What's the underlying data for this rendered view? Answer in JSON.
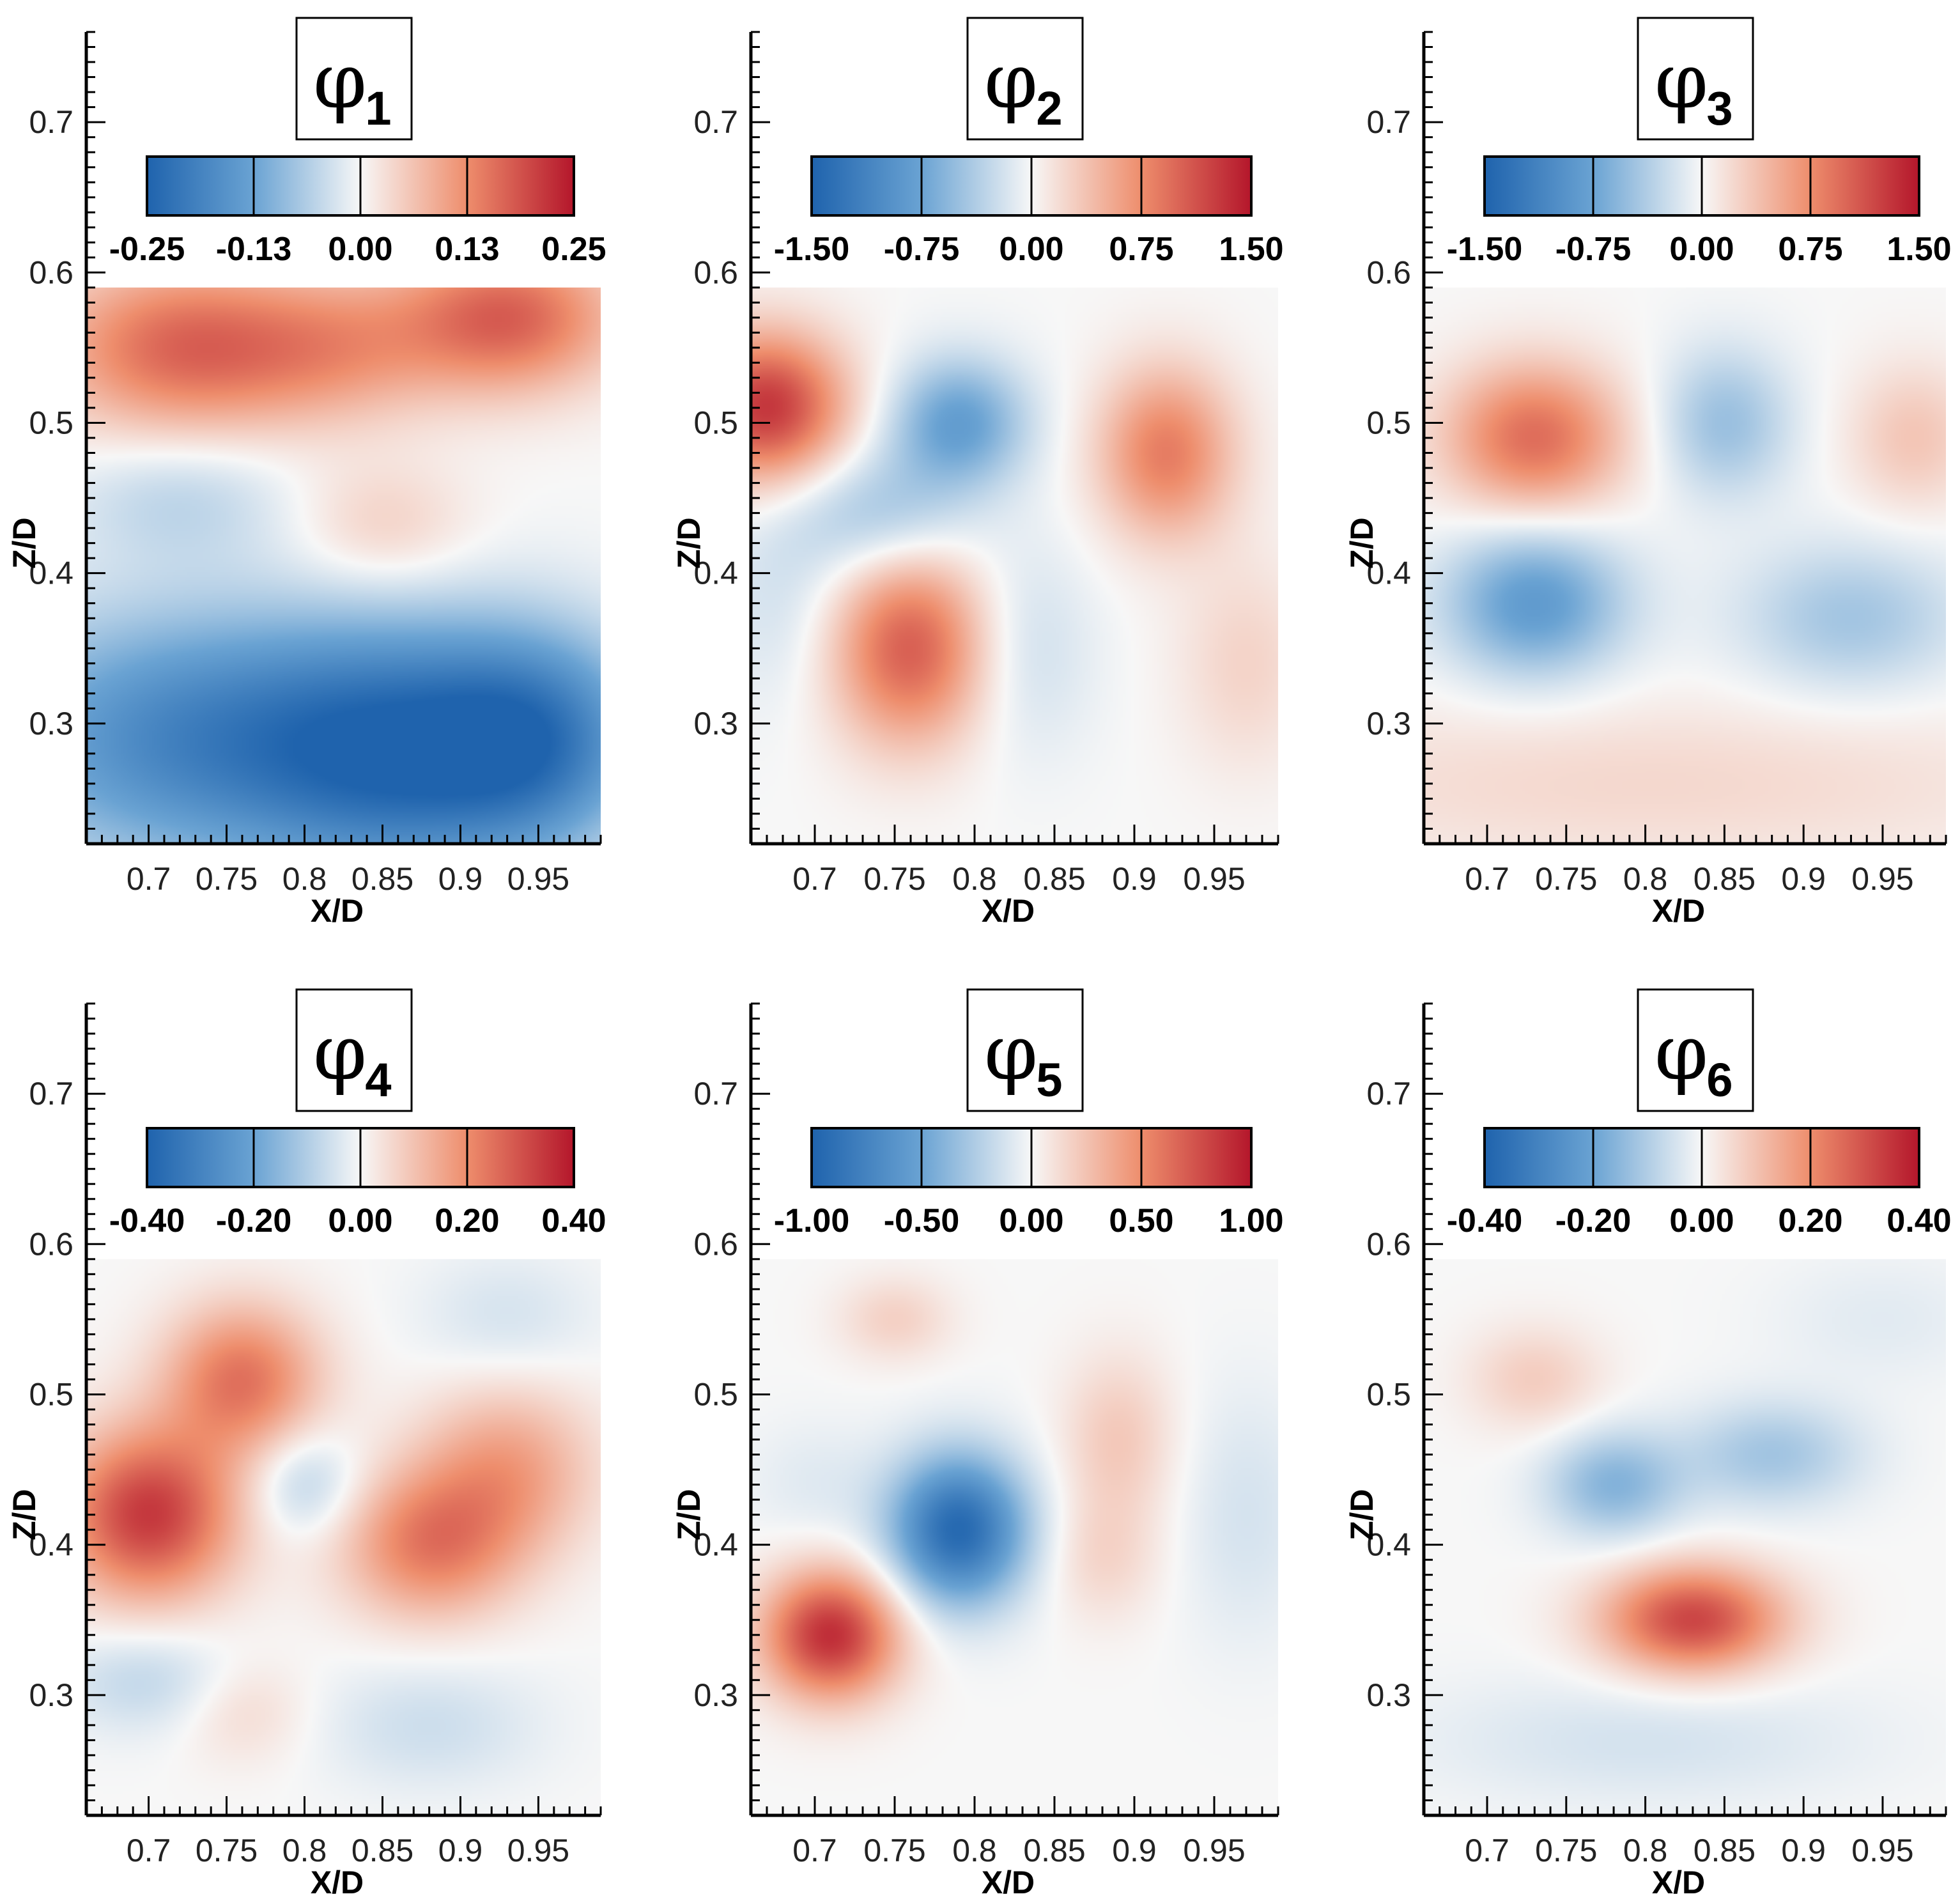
{
  "palette": {
    "neg_strong": "#1f63ad",
    "neg_mid": "#6aa3d3",
    "neutral": "#f7f7f7",
    "pos_mid": "#ee8d6c",
    "pos_strong": "#b4162b"
  },
  "chart_data": [
    {
      "type": "heatmap",
      "title_symbol": "φ",
      "title_index": "1",
      "xlabel": "X/D",
      "ylabel": "Z/D",
      "xlim": [
        0.66,
        0.99
      ],
      "ylim": [
        0.22,
        0.76
      ],
      "field_x_range": [
        0.66,
        0.99
      ],
      "field_y_range": [
        0.22,
        0.59
      ],
      "xticks": [
        "0.7",
        "0.75",
        "0.8",
        "0.85",
        "0.9",
        "0.95"
      ],
      "xtick_values": [
        0.7,
        0.75,
        0.8,
        0.85,
        0.9,
        0.95
      ],
      "yticks": [
        "0.3",
        "0.4",
        "0.5",
        "0.6",
        "0.7"
      ],
      "ytick_values": [
        0.3,
        0.4,
        0.5,
        0.6,
        0.7
      ],
      "colorbar_labels": [
        "-0.25",
        "-0.13",
        "0.00",
        "0.13",
        "0.25"
      ],
      "colorbar_range": [
        -0.25,
        0.25
      ],
      "ylabel_visible": true,
      "features": [
        {
          "x": 0.72,
          "z": 0.55,
          "amplitude": 0.16,
          "sx": 0.06,
          "sz": 0.04
        },
        {
          "x": 0.93,
          "z": 0.57,
          "amplitude": 0.17,
          "sx": 0.05,
          "sz": 0.035
        },
        {
          "x": 0.82,
          "z": 0.55,
          "amplitude": 0.09,
          "sx": 0.05,
          "sz": 0.035
        },
        {
          "x": 0.72,
          "z": 0.45,
          "amplitude": -0.05,
          "sx": 0.05,
          "sz": 0.03
        },
        {
          "x": 0.85,
          "z": 0.43,
          "amplitude": 0.05,
          "sx": 0.04,
          "sz": 0.03
        },
        {
          "x": 0.72,
          "z": 0.29,
          "amplitude": -0.17,
          "sx": 0.09,
          "sz": 0.06
        },
        {
          "x": 0.86,
          "z": 0.28,
          "amplitude": -0.2,
          "sx": 0.07,
          "sz": 0.06
        },
        {
          "x": 0.95,
          "z": 0.29,
          "amplitude": -0.17,
          "sx": 0.05,
          "sz": 0.05
        }
      ]
    },
    {
      "type": "heatmap",
      "title_symbol": "φ",
      "title_index": "2",
      "xlabel": "X/D",
      "ylabel": "Z/D",
      "xlim": [
        0.66,
        0.99
      ],
      "ylim": [
        0.22,
        0.76
      ],
      "field_x_range": [
        0.66,
        0.99
      ],
      "field_y_range": [
        0.22,
        0.59
      ],
      "xticks": [
        "0.7",
        "0.75",
        "0.8",
        "0.85",
        "0.9",
        "0.95"
      ],
      "xtick_values": [
        0.7,
        0.75,
        0.8,
        0.85,
        0.9,
        0.95
      ],
      "yticks": [
        "0.3",
        "0.4",
        "0.5",
        "0.6",
        "0.7"
      ],
      "ytick_values": [
        0.3,
        0.4,
        0.5,
        0.6,
        0.7
      ],
      "colorbar_labels": [
        "-1.50",
        "-0.75",
        "0.00",
        "0.75",
        "1.50"
      ],
      "colorbar_range": [
        -1.5,
        1.5
      ],
      "ylabel_visible": true,
      "features": [
        {
          "x": 0.67,
          "z": 0.51,
          "amplitude": 1.3,
          "sx": 0.035,
          "sz": 0.035
        },
        {
          "x": 0.79,
          "z": 0.5,
          "amplitude": -0.8,
          "sx": 0.03,
          "sz": 0.03
        },
        {
          "x": 0.74,
          "z": 0.44,
          "amplitude": -0.45,
          "sx": 0.04,
          "sz": 0.03
        },
        {
          "x": 0.92,
          "z": 0.48,
          "amplitude": 0.85,
          "sx": 0.03,
          "sz": 0.04
        },
        {
          "x": 0.76,
          "z": 0.35,
          "amplitude": 1.05,
          "sx": 0.035,
          "sz": 0.045
        },
        {
          "x": 0.83,
          "z": 0.35,
          "amplitude": -0.25,
          "sx": 0.03,
          "sz": 0.05
        },
        {
          "x": 0.97,
          "z": 0.34,
          "amplitude": 0.25,
          "sx": 0.03,
          "sz": 0.05
        },
        {
          "x": 0.68,
          "z": 0.38,
          "amplitude": -0.2,
          "sx": 0.03,
          "sz": 0.05
        }
      ]
    },
    {
      "type": "heatmap",
      "title_symbol": "φ",
      "title_index": "3",
      "xlabel": "X/D",
      "ylabel": "Z/D",
      "xlim": [
        0.66,
        0.99
      ],
      "ylim": [
        0.22,
        0.76
      ],
      "field_x_range": [
        0.66,
        0.99
      ],
      "field_y_range": [
        0.22,
        0.59
      ],
      "xticks": [
        "0.7",
        "0.75",
        "0.8",
        "0.85",
        "0.9",
        "0.95"
      ],
      "xtick_values": [
        0.7,
        0.75,
        0.8,
        0.85,
        0.9,
        0.95
      ],
      "yticks": [
        "0.3",
        "0.4",
        "0.5",
        "0.6",
        "0.7"
      ],
      "ytick_values": [
        0.3,
        0.4,
        0.5,
        0.6,
        0.7
      ],
      "colorbar_labels": [
        "-1.50",
        "-0.75",
        "0.00",
        "0.75",
        "1.50"
      ],
      "colorbar_range": [
        -1.5,
        1.5
      ],
      "ylabel_visible": true,
      "features": [
        {
          "x": 0.73,
          "z": 0.49,
          "amplitude": 0.95,
          "sx": 0.04,
          "sz": 0.035
        },
        {
          "x": 0.85,
          "z": 0.5,
          "amplitude": -0.5,
          "sx": 0.03,
          "sz": 0.035
        },
        {
          "x": 0.97,
          "z": 0.49,
          "amplitude": 0.35,
          "sx": 0.03,
          "sz": 0.035
        },
        {
          "x": 0.73,
          "z": 0.38,
          "amplitude": -0.85,
          "sx": 0.04,
          "sz": 0.035
        },
        {
          "x": 0.93,
          "z": 0.37,
          "amplitude": -0.45,
          "sx": 0.05,
          "sz": 0.035
        },
        {
          "x": 0.8,
          "z": 0.26,
          "amplitude": 0.22,
          "sx": 0.2,
          "sz": 0.04
        }
      ]
    },
    {
      "type": "heatmap",
      "title_symbol": "φ",
      "title_index": "4",
      "xlabel": "X/D",
      "ylabel": "Z/D",
      "xlim": [
        0.66,
        0.99
      ],
      "ylim": [
        0.22,
        0.76
      ],
      "field_x_range": [
        0.66,
        0.99
      ],
      "field_y_range": [
        0.22,
        0.59
      ],
      "xticks": [
        "0.7",
        "0.75",
        "0.8",
        "0.85",
        "0.9",
        "0.95"
      ],
      "xtick_values": [
        0.7,
        0.75,
        0.8,
        0.85,
        0.9,
        0.95
      ],
      "yticks": [
        "0.3",
        "0.4",
        "0.5",
        "0.6",
        "0.7"
      ],
      "ytick_values": [
        0.3,
        0.4,
        0.5,
        0.6,
        0.7
      ],
      "colorbar_labels": [
        "-0.40",
        "-0.20",
        "0.00",
        "0.20",
        "0.40"
      ],
      "colorbar_range": [
        -0.4,
        0.4
      ],
      "ylabel_visible": true,
      "features": [
        {
          "x": 0.7,
          "z": 0.42,
          "amplitude": 0.34,
          "sx": 0.04,
          "sz": 0.04
        },
        {
          "x": 0.76,
          "z": 0.51,
          "amplitude": 0.24,
          "sx": 0.035,
          "sz": 0.035
        },
        {
          "x": 0.8,
          "z": 0.44,
          "amplitude": -0.1,
          "sx": 0.025,
          "sz": 0.025
        },
        {
          "x": 0.88,
          "z": 0.4,
          "amplitude": 0.22,
          "sx": 0.04,
          "sz": 0.035
        },
        {
          "x": 0.93,
          "z": 0.45,
          "amplitude": 0.16,
          "sx": 0.04,
          "sz": 0.04
        },
        {
          "x": 0.7,
          "z": 0.31,
          "amplitude": -0.08,
          "sx": 0.04,
          "sz": 0.025
        },
        {
          "x": 0.76,
          "z": 0.29,
          "amplitude": 0.06,
          "sx": 0.03,
          "sz": 0.025
        },
        {
          "x": 0.93,
          "z": 0.55,
          "amplitude": -0.05,
          "sx": 0.04,
          "sz": 0.03
        },
        {
          "x": 0.88,
          "z": 0.28,
          "amplitude": -0.06,
          "sx": 0.05,
          "sz": 0.03
        }
      ]
    },
    {
      "type": "heatmap",
      "title_symbol": "φ",
      "title_index": "5",
      "xlabel": "X/D",
      "ylabel": "Z/D",
      "xlim": [
        0.66,
        0.99
      ],
      "ylim": [
        0.22,
        0.76
      ],
      "field_x_range": [
        0.66,
        0.99
      ],
      "field_y_range": [
        0.22,
        0.59
      ],
      "xticks": [
        "0.7",
        "0.75",
        "0.8",
        "0.85",
        "0.9",
        "0.95"
      ],
      "xtick_values": [
        0.7,
        0.75,
        0.8,
        0.85,
        0.9,
        0.95
      ],
      "yticks": [
        "0.3",
        "0.4",
        "0.5",
        "0.6",
        "0.7"
      ],
      "ytick_values": [
        0.3,
        0.4,
        0.5,
        0.6,
        0.7
      ],
      "colorbar_labels": [
        "-1.00",
        "-0.50",
        "0.00",
        "0.50",
        "1.00"
      ],
      "colorbar_range": [
        -1.0,
        1.0
      ],
      "ylabel_visible": true,
      "features": [
        {
          "x": 0.79,
          "z": 0.41,
          "amplitude": -0.95,
          "sx": 0.03,
          "sz": 0.035
        },
        {
          "x": 0.71,
          "z": 0.34,
          "amplitude": 0.9,
          "sx": 0.03,
          "sz": 0.03
        },
        {
          "x": 0.75,
          "z": 0.55,
          "amplitude": 0.18,
          "sx": 0.025,
          "sz": 0.02
        },
        {
          "x": 0.89,
          "z": 0.47,
          "amplitude": 0.22,
          "sx": 0.025,
          "sz": 0.04
        },
        {
          "x": 0.88,
          "z": 0.39,
          "amplitude": 0.15,
          "sx": 0.025,
          "sz": 0.03
        },
        {
          "x": 0.97,
          "z": 0.42,
          "amplitude": -0.12,
          "sx": 0.03,
          "sz": 0.06
        },
        {
          "x": 0.7,
          "z": 0.44,
          "amplitude": -0.08,
          "sx": 0.03,
          "sz": 0.03
        }
      ]
    },
    {
      "type": "heatmap",
      "title_symbol": "φ",
      "title_index": "6",
      "xlabel": "X/D",
      "ylabel": "Z/D",
      "xlim": [
        0.66,
        0.99
      ],
      "ylim": [
        0.22,
        0.76
      ],
      "field_x_range": [
        0.66,
        0.99
      ],
      "field_y_range": [
        0.22,
        0.59
      ],
      "xticks": [
        "0.7",
        "0.75",
        "0.8",
        "0.85",
        "0.9",
        "0.95"
      ],
      "xtick_values": [
        0.7,
        0.75,
        0.8,
        0.85,
        0.9,
        0.95
      ],
      "yticks": [
        "0.3",
        "0.4",
        "0.5",
        "0.6",
        "0.7"
      ],
      "ytick_values": [
        0.3,
        0.4,
        0.5,
        0.6,
        0.7
      ],
      "colorbar_labels": [
        "-0.40",
        "-0.20",
        "0.00",
        "0.20",
        "0.40"
      ],
      "colorbar_range": [
        -0.4,
        0.4
      ],
      "ylabel_visible": true,
      "features": [
        {
          "x": 0.83,
          "z": 0.35,
          "amplitude": 0.32,
          "sx": 0.04,
          "sz": 0.025
        },
        {
          "x": 0.78,
          "z": 0.44,
          "amplitude": -0.16,
          "sx": 0.03,
          "sz": 0.025
        },
        {
          "x": 0.88,
          "z": 0.46,
          "amplitude": -0.12,
          "sx": 0.04,
          "sz": 0.025
        },
        {
          "x": 0.73,
          "z": 0.51,
          "amplitude": 0.08,
          "sx": 0.03,
          "sz": 0.025
        },
        {
          "x": 0.8,
          "z": 0.27,
          "amplitude": -0.05,
          "sx": 0.1,
          "sz": 0.03
        },
        {
          "x": 0.95,
          "z": 0.55,
          "amplitude": -0.03,
          "sx": 0.05,
          "sz": 0.03
        }
      ]
    }
  ]
}
